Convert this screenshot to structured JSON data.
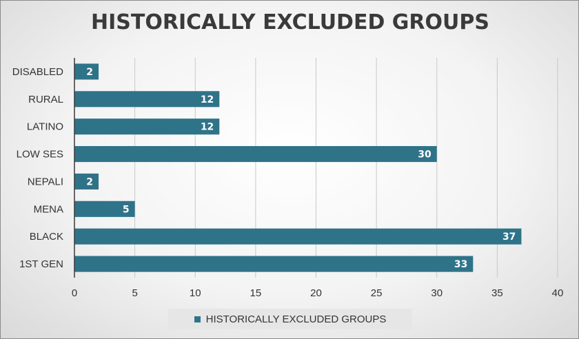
{
  "chart_data": {
    "type": "bar",
    "orientation": "horizontal",
    "title": "HISTORICALLY EXCLUDED GROUPS",
    "categories": [
      "DISABLED",
      "RURAL",
      "LATINO",
      "LOW SES",
      "NEPALI",
      "MENA",
      "BLACK",
      "1ST GEN"
    ],
    "series": [
      {
        "name": "HISTORICALLY EXCLUDED GROUPS",
        "values": [
          2,
          12,
          12,
          30,
          2,
          5,
          37,
          33
        ],
        "color": "#2f7389"
      }
    ],
    "x_ticks": [
      "0",
      "5",
      "10",
      "15",
      "20",
      "25",
      "30",
      "35",
      "40"
    ],
    "xlim": [
      0,
      40
    ],
    "grid": "vertical",
    "legend": "bottom",
    "data_labels": true
  }
}
